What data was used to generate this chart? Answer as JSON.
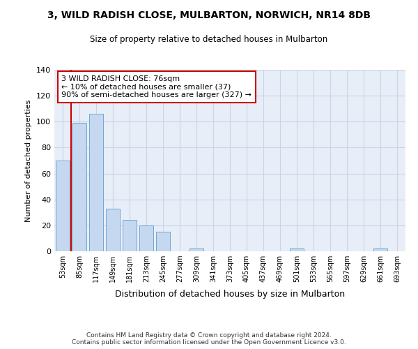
{
  "title": "3, WILD RADISH CLOSE, MULBARTON, NORWICH, NR14 8DB",
  "subtitle": "Size of property relative to detached houses in Mulbarton",
  "xlabel": "Distribution of detached houses by size in Mulbarton",
  "ylabel": "Number of detached properties",
  "categories": [
    "53sqm",
    "85sqm",
    "117sqm",
    "149sqm",
    "181sqm",
    "213sqm",
    "245sqm",
    "277sqm",
    "309sqm",
    "341sqm",
    "373sqm",
    "405sqm",
    "437sqm",
    "469sqm",
    "501sqm",
    "533sqm",
    "565sqm",
    "597sqm",
    "629sqm",
    "661sqm",
    "693sqm"
  ],
  "values": [
    70,
    99,
    106,
    33,
    24,
    20,
    15,
    0,
    2,
    0,
    0,
    0,
    0,
    0,
    2,
    0,
    0,
    0,
    0,
    2,
    0
  ],
  "bar_color": "#c5d8f0",
  "bar_edge_color": "#6fa8d5",
  "vline_color": "#cc0000",
  "annotation_text": "3 WILD RADISH CLOSE: 76sqm\n← 10% of detached houses are smaller (37)\n90% of semi-detached houses are larger (327) →",
  "annotation_box_color": "#ffffff",
  "annotation_box_edge": "#cc0000",
  "ylim": [
    0,
    140
  ],
  "yticks": [
    0,
    20,
    40,
    60,
    80,
    100,
    120,
    140
  ],
  "grid_color": "#c8d4e8",
  "bg_color": "#e8eef8",
  "footer": "Contains HM Land Registry data © Crown copyright and database right 2024.\nContains public sector information licensed under the Open Government Licence v3.0."
}
